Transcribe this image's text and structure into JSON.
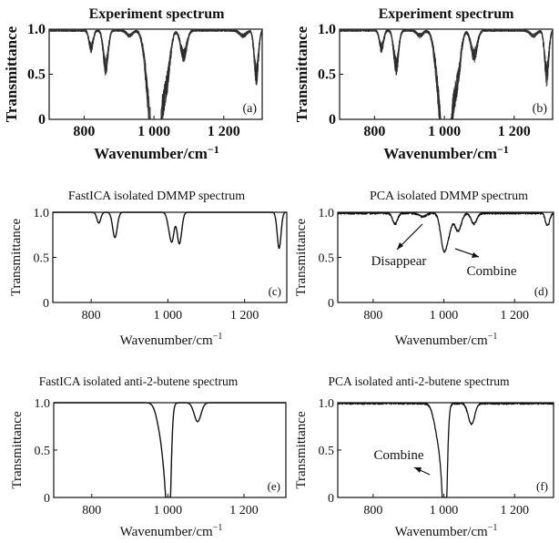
{
  "chart_data": [
    {
      "type": "line",
      "panel_label": "(a)",
      "title": "Experiment spectrum",
      "xlabel": "Wavenumber/cm",
      "xlabel_superscript": "−1",
      "ylabel": "Transmittance",
      "xlim": [
        700,
        1310
      ],
      "ylim": [
        0,
        1.0
      ],
      "xticks": [
        800,
        1000,
        1200
      ],
      "xtick_labels": [
        "800",
        "1 000",
        "1 200"
      ],
      "yticks": [
        0,
        0.5,
        1.0
      ],
      "ytick_labels": [
        "0",
        "0.5",
        "1.0"
      ],
      "style": "bold",
      "series": [
        {
          "peaks": [
            [
              820,
              0.2,
              6
            ],
            [
              862,
              0.4,
              7
            ],
            [
              930,
              0.06,
              9
            ],
            [
              985,
              0.55,
              12
            ],
            [
              1000,
              1.0,
              10
            ],
            [
              1012,
              0.72,
              8
            ],
            [
              1025,
              0.55,
              10
            ],
            [
              1040,
              0.35,
              9
            ],
            [
              1085,
              0.28,
              9
            ],
            [
              1255,
              0.06,
              10
            ],
            [
              1293,
              0.5,
              6
            ]
          ],
          "variants": 8,
          "noise": 0.06
        }
      ]
    },
    {
      "type": "line",
      "panel_label": "(b)",
      "title": "Experiment spectrum",
      "xlabel": "Wavenumber/cm",
      "xlabel_superscript": "−1",
      "ylabel": "Transmittance",
      "xlim": [
        700,
        1310
      ],
      "ylim": [
        0,
        1.0
      ],
      "xticks": [
        800,
        1000,
        1200
      ],
      "xtick_labels": [
        "800",
        "1 000",
        "1 200"
      ],
      "yticks": [
        0,
        0.5,
        1.0
      ],
      "ytick_labels": [
        "0",
        "0.5",
        "1.0"
      ],
      "style": "bold",
      "series": [
        {
          "peaks": [
            [
              820,
              0.2,
              6
            ],
            [
              862,
              0.4,
              7
            ],
            [
              930,
              0.06,
              9
            ],
            [
              985,
              0.55,
              12
            ],
            [
              1000,
              1.0,
              10
            ],
            [
              1012,
              0.72,
              8
            ],
            [
              1025,
              0.55,
              10
            ],
            [
              1040,
              0.35,
              9
            ],
            [
              1085,
              0.28,
              9
            ],
            [
              1255,
              0.06,
              10
            ],
            [
              1293,
              0.5,
              6
            ]
          ],
          "variants": 8,
          "noise": 0.06
        }
      ]
    },
    {
      "type": "line",
      "panel_label": "(c)",
      "title": "FastICA isolated DMMP spectrum",
      "xlabel": "Wavenumber/cm",
      "xlabel_superscript": "−1",
      "ylabel": "Transmittance",
      "xlim": [
        700,
        1310
      ],
      "ylim": [
        0,
        1.0
      ],
      "xticks": [
        800,
        1000,
        1200
      ],
      "xtick_labels": [
        "800",
        "1 000",
        "1 200"
      ],
      "yticks": [
        0,
        0.5,
        1.0
      ],
      "ytick_labels": [
        "0",
        "0.5",
        "1.0"
      ],
      "style": "normal",
      "series": [
        {
          "peaks": [
            [
              820,
              0.12,
              5
            ],
            [
              862,
              0.28,
              6
            ],
            [
              1005,
              0.18,
              6
            ],
            [
              1012,
              0.22,
              5
            ],
            [
              1030,
              0.35,
              6
            ],
            [
              1290,
              0.4,
              5
            ]
          ],
          "variants": 1,
          "noise": 0.0
        }
      ]
    },
    {
      "type": "line",
      "panel_label": "(d)",
      "title": "PCA isolated DMMP spectrum",
      "xlabel": "Wavenumber/cm",
      "xlabel_superscript": "−1",
      "ylabel": "Transmittance",
      "xlim": [
        700,
        1310
      ],
      "ylim": [
        0,
        1.0
      ],
      "xticks": [
        800,
        1000,
        1200
      ],
      "xtick_labels": [
        "800",
        "1 000",
        "1 200"
      ],
      "yticks": [
        0,
        0.5,
        1.0
      ],
      "ytick_labels": [
        "0",
        "0.5",
        "1.0"
      ],
      "style": "noisy",
      "annotations": [
        "Disappear",
        "Combine"
      ],
      "series": [
        {
          "peaks": [
            [
              862,
              0.12,
              7
            ],
            [
              940,
              0.04,
              10
            ],
            [
              1000,
              0.4,
              9
            ],
            [
              1015,
              0.15,
              8
            ],
            [
              1040,
              0.2,
              9
            ],
            [
              1085,
              0.12,
              8
            ],
            [
              1293,
              0.14,
              6
            ]
          ],
          "variants": 1,
          "noise": 0.03
        }
      ]
    },
    {
      "type": "line",
      "panel_label": "(e)",
      "title": "FastICA isolated anti-2-butene spectrum",
      "xlabel": "Wavenumber/cm",
      "xlabel_superscript": "−1",
      "ylabel": "Transmittance",
      "xlim": [
        700,
        1310
      ],
      "ylim": [
        0,
        1.0
      ],
      "xticks": [
        800,
        1000,
        1200
      ],
      "xtick_labels": [
        "800",
        "1 000",
        "1 200"
      ],
      "yticks": [
        0,
        0.5,
        1.0
      ],
      "ytick_labels": [
        "0",
        "0.5",
        "1.0"
      ],
      "style": "normal",
      "series": [
        {
          "peaks": [
            [
              985,
              0.35,
              12
            ],
            [
              997,
              0.6,
              8
            ],
            [
              1003,
              0.9,
              5
            ],
            [
              1078,
              0.2,
              9
            ]
          ],
          "variants": 1,
          "noise": 0.0
        }
      ]
    },
    {
      "type": "line",
      "panel_label": "(f)",
      "title": "PCA isolated anti-2-butene spectrum",
      "xlabel": "Wavenumber/cm",
      "xlabel_superscript": "−1",
      "ylabel": "Transmittance",
      "xlim": [
        700,
        1310
      ],
      "ylim": [
        0,
        1.0
      ],
      "xticks": [
        800,
        1000,
        1200
      ],
      "xtick_labels": [
        "800",
        "1 000",
        "1 200"
      ],
      "yticks": [
        0,
        0.5,
        1.0
      ],
      "ytick_labels": [
        "0",
        "0.5",
        "1.0"
      ],
      "style": "noisy",
      "annotations": [
        "Combine"
      ],
      "series": [
        {
          "peaks": [
            [
              985,
              0.35,
              12
            ],
            [
              999,
              0.6,
              8
            ],
            [
              1004,
              0.93,
              5
            ],
            [
              1078,
              0.22,
              9
            ]
          ],
          "variants": 1,
          "noise": 0.025
        }
      ]
    }
  ]
}
